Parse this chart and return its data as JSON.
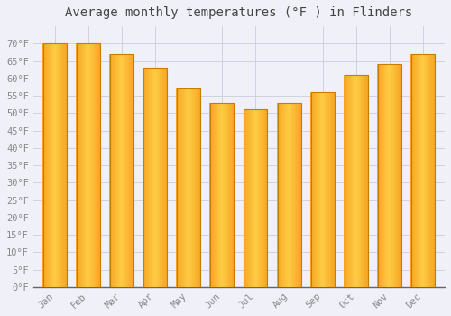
{
  "title": "Average monthly temperatures (°F ) in Flinders",
  "months": [
    "Jan",
    "Feb",
    "Mar",
    "Apr",
    "May",
    "Jun",
    "Jul",
    "Aug",
    "Sep",
    "Oct",
    "Nov",
    "Dec"
  ],
  "values": [
    70,
    70,
    67,
    63,
    57,
    53,
    51,
    53,
    56,
    61,
    64,
    67
  ],
  "bar_color_left": "#F5A623",
  "bar_color_center": "#FFCC44",
  "bar_color_right": "#F5A623",
  "bar_edge_color": "#C87D00",
  "background_color": "#F0F0F8",
  "grid_color": "#CCCCDD",
  "ylim": [
    0,
    75
  ],
  "yticks": [
    0,
    5,
    10,
    15,
    20,
    25,
    30,
    35,
    40,
    45,
    50,
    55,
    60,
    65,
    70
  ],
  "title_fontsize": 10,
  "tick_fontsize": 7.5,
  "tick_font_color": "#888888",
  "title_font_color": "#444444",
  "bar_width": 0.7
}
